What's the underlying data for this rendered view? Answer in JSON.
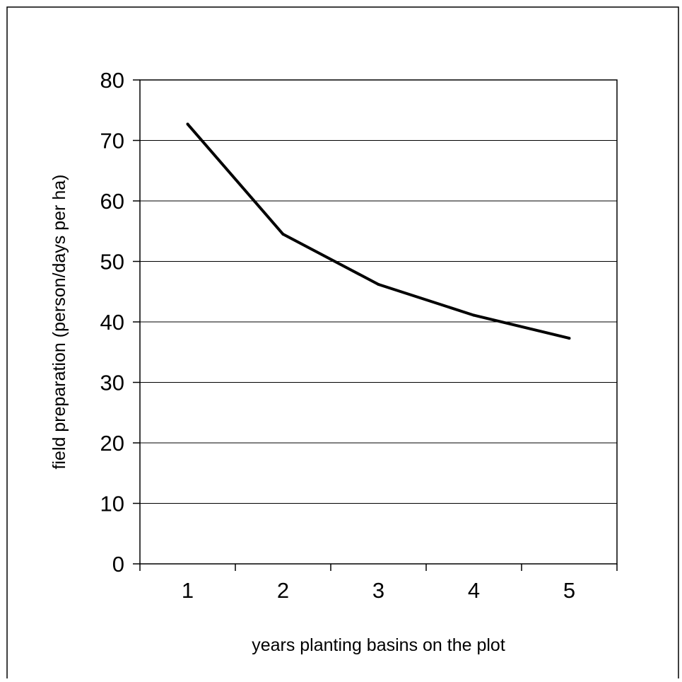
{
  "chart_data": {
    "type": "line",
    "categories": [
      "1",
      "2",
      "3",
      "4",
      "5"
    ],
    "x": [
      1,
      2,
      3,
      4,
      5
    ],
    "series": [
      {
        "values": [
          72.7,
          54.5,
          46.2,
          41.1,
          37.3
        ]
      }
    ],
    "title": "",
    "xlabel": "years planting basins on the plot",
    "ylabel": "field preparation (person/days per ha)",
    "ylim": [
      0,
      80
    ],
    "yticks": [
      0,
      10,
      20,
      30,
      40,
      50,
      60,
      70,
      80
    ],
    "grid": true,
    "legend": "none",
    "colors": {
      "line": "#000000",
      "grid": "#000000",
      "background": "#ffffff"
    }
  }
}
